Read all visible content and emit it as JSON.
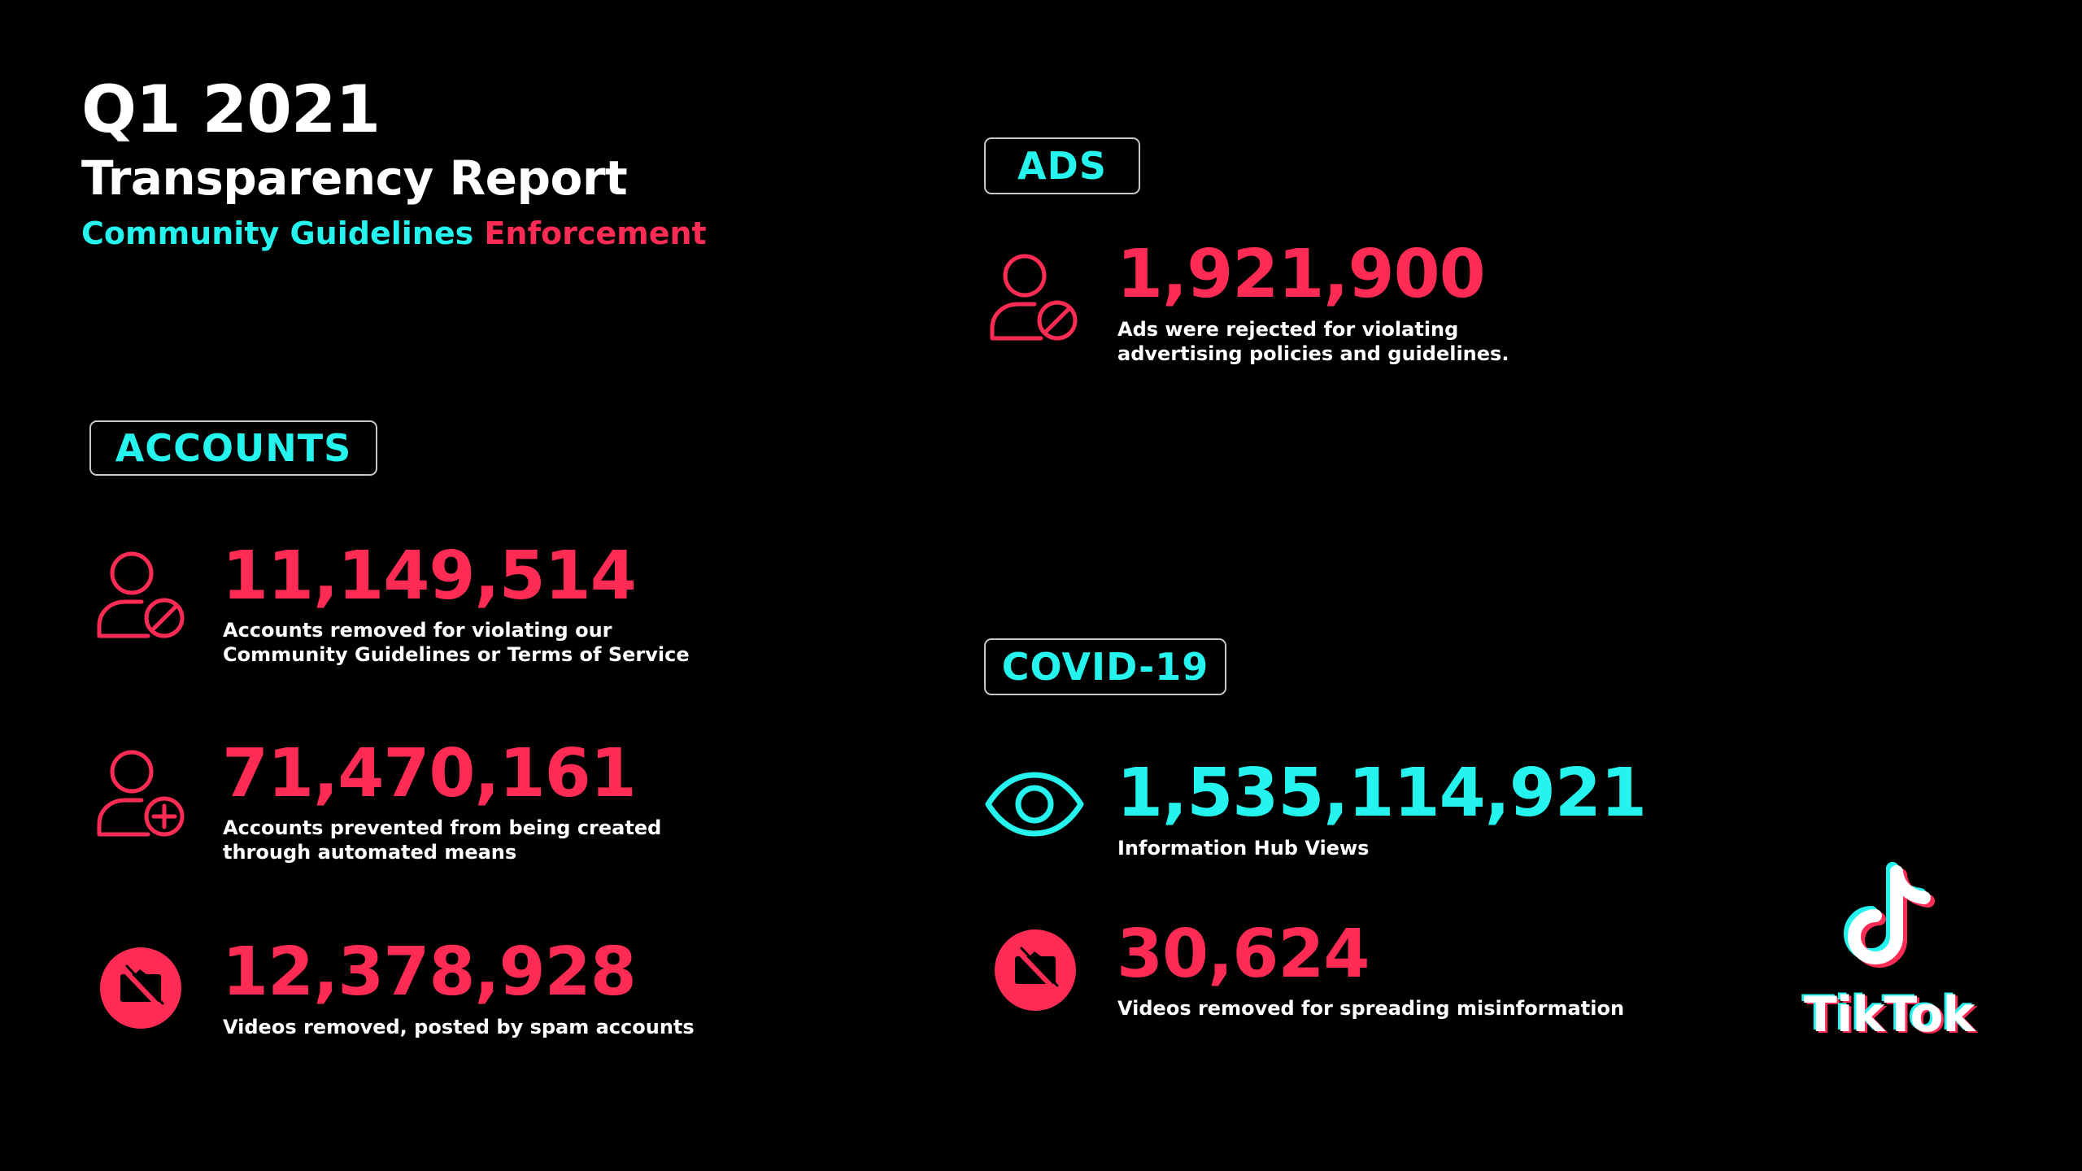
{
  "header": {
    "quarter": "Q1 2021",
    "title": "Transparency Report",
    "tag_part1": "Community Guidelines",
    "tag_part2": "Enforcement"
  },
  "colors": {
    "background": "#000000",
    "accent_cyan": "#25f4ee",
    "accent_pink": "#fe2c55",
    "text": "#ffffff"
  },
  "sections": {
    "accounts": {
      "label": "ACCOUNTS",
      "stats": [
        {
          "value": "11,149,514",
          "line1": "Accounts removed for violating our",
          "line2": "Community Guidelines or Terms of Service",
          "icon": "user-blocked-icon"
        },
        {
          "value": "71,470,161",
          "line1": "Accounts prevented from being created",
          "line2": "through automated means",
          "icon": "user-add-icon"
        },
        {
          "value": "12,378,928",
          "line1": "Videos removed, posted by spam accounts",
          "icon": "video-off-icon"
        }
      ]
    },
    "ads": {
      "label": "ADS",
      "stats": [
        {
          "value": "1,921,900",
          "line1": "Ads were rejected for violating",
          "line2": "advertising policies and guidelines.",
          "icon": "user-blocked-icon"
        }
      ]
    },
    "covid": {
      "label": "COVID-19",
      "stats": [
        {
          "value": "1,535,114,921",
          "line1": "Information Hub Views",
          "icon": "eye-icon"
        },
        {
          "value": "30,624",
          "line1": "Videos removed for spreading misinformation",
          "icon": "video-off-icon"
        }
      ]
    }
  },
  "logo": {
    "wordmark": "TikTok",
    "icon": "tiktok-note-icon"
  }
}
